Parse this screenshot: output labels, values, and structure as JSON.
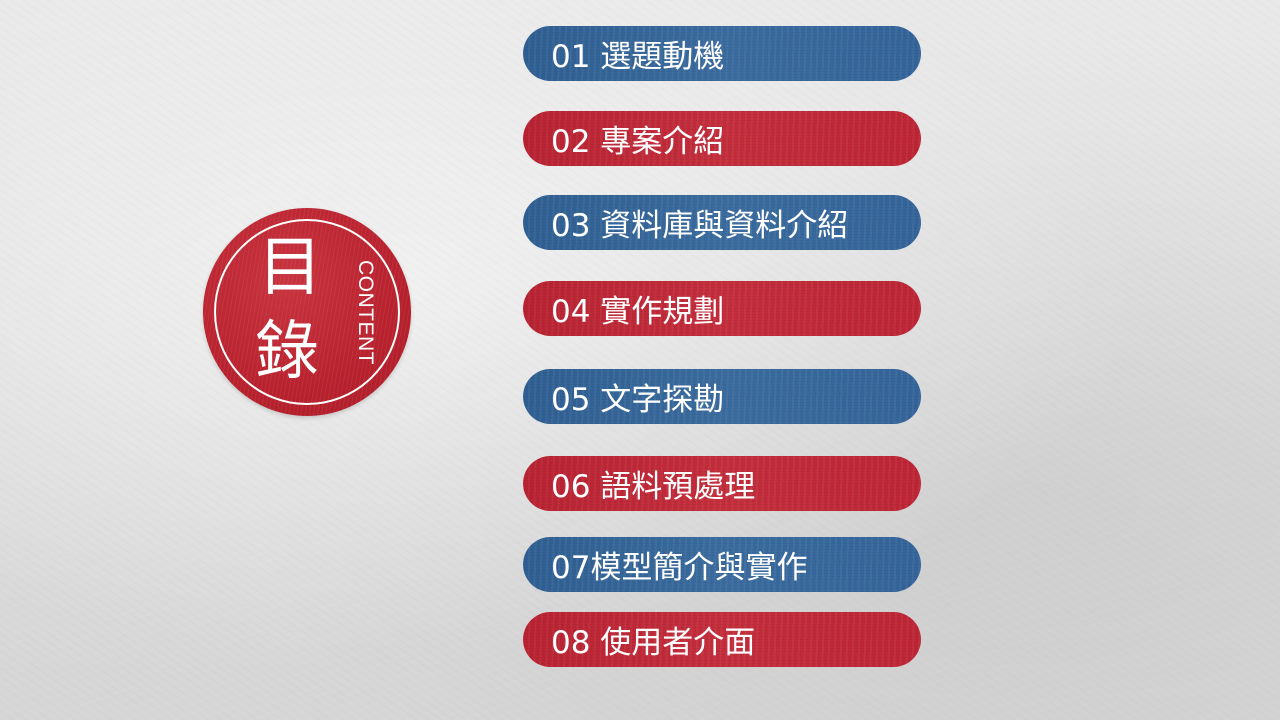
{
  "seal": {
    "char_top": "目",
    "char_bottom": "錄",
    "subtitle": "CONTENT"
  },
  "menu": {
    "items": [
      {
        "label": "01 選題動機",
        "color": "#34649a"
      },
      {
        "label": "02 專案介紹",
        "color": "#bd2535"
      },
      {
        "label": "03 資料庫與資料介紹",
        "color": "#34649a"
      },
      {
        "label": "04 實作規劃",
        "color": "#bd2535"
      },
      {
        "label": "05 文字探勘",
        "color": "#34649a"
      },
      {
        "label": "06 語料預處理",
        "color": "#bd2535"
      },
      {
        "label": "07模型簡介與實作",
        "color": "#34649a"
      },
      {
        "label": "08 使用者介面",
        "color": "#bd2535"
      }
    ]
  },
  "colors": {
    "blue": "#34649a",
    "red": "#bd2535",
    "background": "#e2e2e2"
  }
}
